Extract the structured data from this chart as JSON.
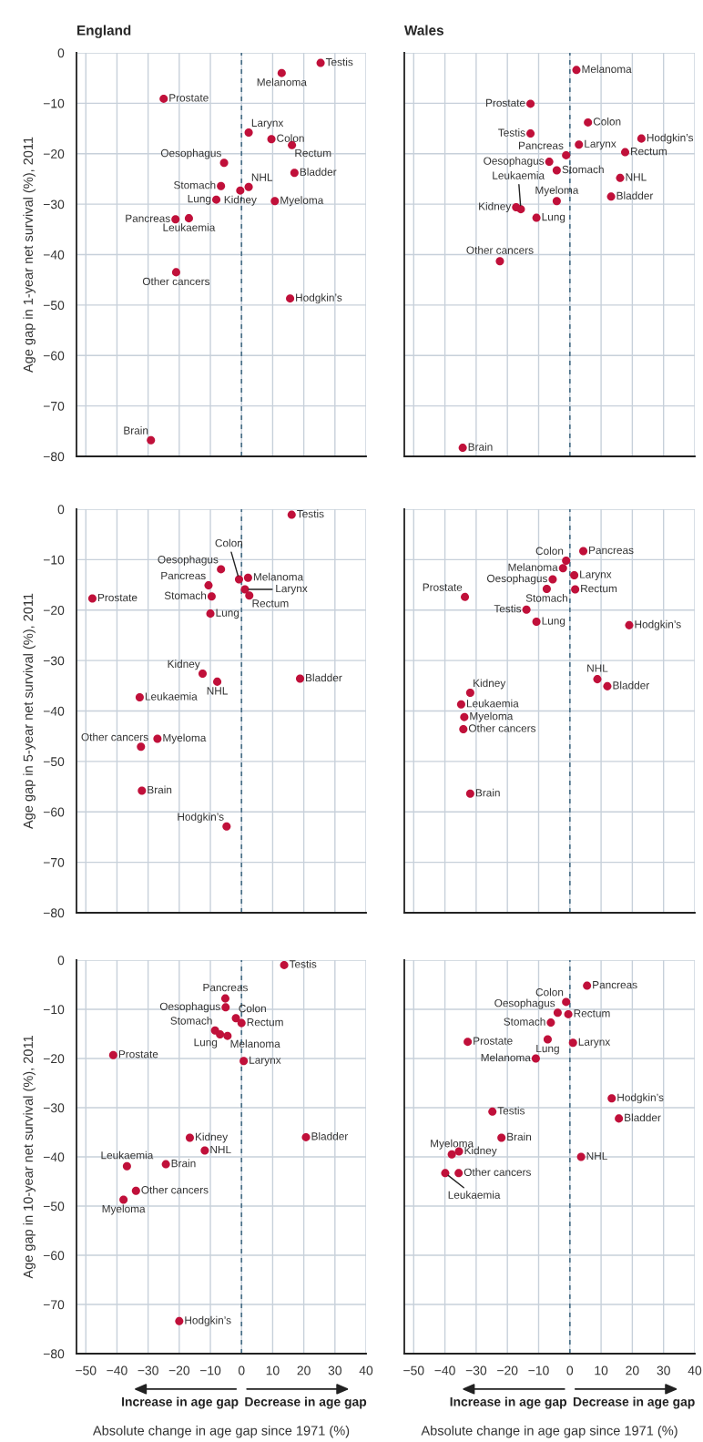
{
  "chart_data": [
    {
      "type": "scatter",
      "title": "England",
      "ylabel": "Age gap in 1-year net survival (%), 2011",
      "xlim": [
        -53,
        40
      ],
      "ylim": [
        -80,
        0
      ],
      "xticks": [
        -50,
        -40,
        -30,
        -20,
        -10,
        0,
        10,
        20,
        30,
        40
      ],
      "yticks": [
        -80,
        -70,
        -60,
        -50,
        -40,
        -30,
        -20,
        -10,
        0
      ],
      "tick_labels": "y",
      "grid": true,
      "marker": "circle",
      "ref_lines": [
        {
          "axis": "x",
          "value": 0,
          "color": "#4a7088",
          "line_style": "dashed"
        }
      ],
      "series": [
        {
          "color": "#c0103a",
          "x": [
            25.4,
            12.9,
            -25.0,
            2.3,
            9.6,
            16.2,
            -5.6,
            17.0,
            -6.6,
            2.3,
            -0.4,
            -8.1,
            10.7,
            -21.2,
            -16.9,
            -21.0,
            15.6,
            -29.1
          ],
          "values": [
            -2.0,
            -4.0,
            -9.1,
            -15.8,
            -17.1,
            -18.3,
            -21.8,
            -23.8,
            -26.4,
            -26.6,
            -27.3,
            -29.1,
            -29.4,
            -33.0,
            -32.8,
            -43.5,
            -48.7,
            -76.8
          ]
        }
      ],
      "annotations": [
        {
          "text": "Testis",
          "x": 25.4,
          "y": -2.0
        },
        {
          "text": "Melanoma",
          "x": 12.9,
          "y": -4.0
        },
        {
          "text": "Prostate",
          "x": -25.0,
          "y": -9.1
        },
        {
          "text": "Larynx",
          "x": 2.3,
          "y": -15.8
        },
        {
          "text": "Colon",
          "x": 9.6,
          "y": -17.1
        },
        {
          "text": "Rectum",
          "x": 16.2,
          "y": -18.3
        },
        {
          "text": "Oesophagus",
          "x": -5.6,
          "y": -21.8
        },
        {
          "text": "Bladder",
          "x": 17.0,
          "y": -23.8
        },
        {
          "text": "Stomach",
          "x": -6.6,
          "y": -26.4
        },
        {
          "text": "NHL",
          "x": 2.3,
          "y": -26.6
        },
        {
          "text": "Kidney",
          "x": -0.4,
          "y": -27.3
        },
        {
          "text": "Lung",
          "x": -8.1,
          "y": -29.1
        },
        {
          "text": "Myeloma",
          "x": 10.7,
          "y": -29.4
        },
        {
          "text": "Pancreas",
          "x": -21.2,
          "y": -33.0
        },
        {
          "text": "Leukaemia",
          "x": -16.9,
          "y": -32.8
        },
        {
          "text": "Other cancers",
          "x": -21.0,
          "y": -43.5
        },
        {
          "text": "Hodgkin’s",
          "x": 15.6,
          "y": -48.7
        },
        {
          "text": "Brain",
          "x": -29.1,
          "y": -76.8
        }
      ]
    },
    {
      "type": "scatter",
      "title": "Wales",
      "xlim": [
        -53,
        40
      ],
      "ylim": [
        -80,
        0
      ],
      "xticks": [
        -50,
        -40,
        -30,
        -20,
        -10,
        0,
        10,
        20,
        30,
        40
      ],
      "yticks": [
        -80,
        -70,
        -60,
        -50,
        -40,
        -30,
        -20,
        -10,
        0
      ],
      "tick_labels": false,
      "grid": true,
      "marker": "circle",
      "ref_lines": [
        {
          "axis": "x",
          "value": 0,
          "color": "#4a7088",
          "line_style": "dashed"
        }
      ],
      "series": [
        {
          "color": "#c0103a",
          "x": [
            2.1,
            -12.6,
            5.8,
            -12.6,
            22.9,
            2.9,
            17.7,
            -1.2,
            -6.6,
            -4.2,
            16.1,
            13.2,
            -4.2,
            -17.2,
            -15.7,
            -10.7,
            -22.4,
            -34.3
          ],
          "values": [
            -3.4,
            -10.1,
            -13.8,
            -16.0,
            -17.0,
            -18.2,
            -19.7,
            -20.3,
            -21.6,
            -23.3,
            -24.8,
            -28.5,
            -29.4,
            -30.6,
            -31.0,
            -32.7,
            -41.3,
            -78.3
          ]
        }
      ],
      "annotations": [
        {
          "text": "Melanoma",
          "x": 2.1,
          "y": -3.4
        },
        {
          "text": "Prostate",
          "x": -12.6,
          "y": -10.1
        },
        {
          "text": "Colon",
          "x": 5.8,
          "y": -13.8
        },
        {
          "text": "Testis",
          "x": -12.6,
          "y": -16.0
        },
        {
          "text": "Hodgkin’s",
          "x": 22.9,
          "y": -17.0
        },
        {
          "text": "Larynx",
          "x": 2.9,
          "y": -18.2
        },
        {
          "text": "Rectum",
          "x": 17.7,
          "y": -19.7
        },
        {
          "text": "Pancreas",
          "x": -1.2,
          "y": -20.3
        },
        {
          "text": "Oesophagus",
          "x": -6.6,
          "y": -21.6
        },
        {
          "text": "Stomach",
          "x": -4.2,
          "y": -23.3
        },
        {
          "text": "NHL",
          "x": 16.1,
          "y": -24.8
        },
        {
          "text": "Bladder",
          "x": 13.2,
          "y": -28.5
        },
        {
          "text": "Myeloma",
          "x": -4.2,
          "y": -29.4
        },
        {
          "text": "Kidney",
          "x": -17.2,
          "y": -30.6
        },
        {
          "text": "Leukaemia",
          "x": -15.7,
          "y": -31.0
        },
        {
          "text": "Lung",
          "x": -10.7,
          "y": -32.7
        },
        {
          "text": "Other cancers",
          "x": -22.4,
          "y": -41.3
        },
        {
          "text": "Brain",
          "x": -34.3,
          "y": -78.3
        }
      ]
    },
    {
      "type": "scatter",
      "ylabel": "Age gap in 5-year net survival (%), 2011",
      "xlim": [
        -53,
        40
      ],
      "ylim": [
        -80,
        0
      ],
      "xticks": [
        -50,
        -40,
        -30,
        -20,
        -10,
        0,
        10,
        20,
        30,
        40
      ],
      "yticks": [
        -80,
        -70,
        -60,
        -50,
        -40,
        -30,
        -20,
        -10,
        0
      ],
      "tick_labels": "y",
      "grid": true,
      "marker": "circle",
      "ref_lines": [
        {
          "axis": "x",
          "value": 0,
          "color": "#4a7088",
          "line_style": "dashed"
        }
      ],
      "series": [
        {
          "color": "#c0103a",
          "x": [
            16.1,
            -6.6,
            -0.8,
            2.1,
            -10.6,
            1.1,
            -9.6,
            2.5,
            -47.9,
            -10.0,
            -12.5,
            -7.8,
            18.8,
            -32.7,
            -27.0,
            -32.3,
            -32.0,
            -4.8
          ],
          "values": [
            -1.1,
            -11.9,
            -13.9,
            -13.6,
            -15.1,
            -15.9,
            -17.3,
            -17.1,
            -17.7,
            -20.7,
            -32.6,
            -34.2,
            -33.6,
            -37.3,
            -45.5,
            -47.1,
            -55.8,
            -62.9
          ]
        }
      ],
      "annotations": [
        {
          "text": "Testis",
          "x": 16.1,
          "y": -1.1
        },
        {
          "text": "Oesophagus",
          "x": -6.6,
          "y": -11.9
        },
        {
          "text": "Colon",
          "x": -0.8,
          "y": -13.9
        },
        {
          "text": "Melanoma",
          "x": 2.1,
          "y": -13.6
        },
        {
          "text": "Pancreas",
          "x": -10.6,
          "y": -15.1
        },
        {
          "text": "Larynx",
          "x": 1.1,
          "y": -15.9
        },
        {
          "text": "Stomach",
          "x": -9.6,
          "y": -17.3
        },
        {
          "text": "Rectum",
          "x": 2.5,
          "y": -17.1
        },
        {
          "text": "Prostate",
          "x": -47.9,
          "y": -17.7
        },
        {
          "text": "Lung",
          "x": -10.0,
          "y": -20.7
        },
        {
          "text": "Kidney",
          "x": -12.5,
          "y": -32.6
        },
        {
          "text": "NHL",
          "x": -7.8,
          "y": -34.2
        },
        {
          "text": "Bladder",
          "x": 18.8,
          "y": -33.6
        },
        {
          "text": "Leukaemia",
          "x": -32.7,
          "y": -37.3
        },
        {
          "text": "Myeloma",
          "x": -27.0,
          "y": -45.5
        },
        {
          "text": "Other cancers",
          "x": -32.3,
          "y": -47.1
        },
        {
          "text": "Brain",
          "x": -32.0,
          "y": -55.8
        },
        {
          "text": "Hodgkin’s",
          "x": -4.8,
          "y": -62.9
        }
      ]
    },
    {
      "type": "scatter",
      "xlim": [
        -53,
        40
      ],
      "ylim": [
        -80,
        0
      ],
      "xticks": [
        -50,
        -40,
        -30,
        -20,
        -10,
        0,
        10,
        20,
        30,
        40
      ],
      "yticks": [
        -80,
        -70,
        -60,
        -50,
        -40,
        -30,
        -20,
        -10,
        0
      ],
      "tick_labels": false,
      "grid": true,
      "marker": "circle",
      "ref_lines": [
        {
          "axis": "x",
          "value": 0,
          "color": "#4a7088",
          "line_style": "dashed"
        }
      ],
      "series": [
        {
          "color": "#c0103a",
          "x": [
            4.3,
            -1.2,
            -2.2,
            1.4,
            -5.5,
            -7.4,
            1.7,
            -33.6,
            -13.9,
            -10.7,
            19.0,
            8.8,
            12.0,
            -31.9,
            -34.8,
            -33.8,
            -34.1,
            -31.9
          ],
          "values": [
            -8.3,
            -10.2,
            -11.7,
            -13.1,
            -13.9,
            -15.8,
            -15.9,
            -17.4,
            -19.9,
            -22.3,
            -23.0,
            -33.7,
            -35.1,
            -36.4,
            -38.7,
            -41.2,
            -43.6,
            -56.4
          ]
        }
      ],
      "annotations": [
        {
          "text": "Pancreas",
          "x": 4.3,
          "y": -8.3
        },
        {
          "text": "Colon",
          "x": -1.2,
          "y": -10.2
        },
        {
          "text": "Melanoma",
          "x": -2.2,
          "y": -11.7
        },
        {
          "text": "Larynx",
          "x": 1.4,
          "y": -13.1
        },
        {
          "text": "Oesophagus",
          "x": -5.5,
          "y": -13.9
        },
        {
          "text": "Stomach",
          "x": -7.4,
          "y": -15.8
        },
        {
          "text": "Rectum",
          "x": 1.7,
          "y": -15.9
        },
        {
          "text": "Prostate",
          "x": -33.6,
          "y": -17.4
        },
        {
          "text": "Testis",
          "x": -13.9,
          "y": -19.9
        },
        {
          "text": "Lung",
          "x": -10.7,
          "y": -22.3
        },
        {
          "text": "Hodgkin’s",
          "x": 19.0,
          "y": -23.0
        },
        {
          "text": "NHL",
          "x": 8.8,
          "y": -33.7
        },
        {
          "text": "Bladder",
          "x": 12.0,
          "y": -35.1
        },
        {
          "text": "Kidney",
          "x": -31.9,
          "y": -36.4
        },
        {
          "text": "Leukaemia",
          "x": -34.8,
          "y": -38.7
        },
        {
          "text": "Myeloma",
          "x": -33.8,
          "y": -41.2
        },
        {
          "text": "Other cancers",
          "x": -34.1,
          "y": -43.6
        },
        {
          "text": "Brain",
          "x": -31.9,
          "y": -56.4
        }
      ]
    },
    {
      "type": "scatter",
      "ylabel": "Age gap in 10-year net survival (%), 2011",
      "xlabel": "Absolute change in age gap since 1971 (%)",
      "xlim": [
        -53,
        40
      ],
      "ylim": [
        -80,
        0
      ],
      "xticks": [
        -50,
        -40,
        -30,
        -20,
        -10,
        0,
        10,
        20,
        30,
        40
      ],
      "yticks": [
        -80,
        -70,
        -60,
        -50,
        -40,
        -30,
        -20,
        -10,
        0
      ],
      "grid": true,
      "marker": "circle",
      "ref_lines": [
        {
          "axis": "x",
          "value": 0,
          "color": "#4a7088",
          "line_style": "dashed"
        }
      ],
      "series": [
        {
          "color": "#c0103a",
          "x": [
            13.7,
            -5.2,
            -5.1,
            -1.8,
            0.0,
            -8.5,
            -6.9,
            -4.5,
            -41.2,
            0.7,
            -16.6,
            20.7,
            -11.8,
            -36.8,
            -24.3,
            -33.9,
            -37.9,
            -20.0
          ],
          "values": [
            -1.0,
            -7.8,
            -9.6,
            -11.8,
            -12.8,
            -14.3,
            -15.1,
            -15.4,
            -19.3,
            -20.5,
            -36.1,
            -36.0,
            -38.7,
            -41.9,
            -41.5,
            -46.9,
            -48.7,
            -73.4
          ]
        }
      ],
      "annotations": [
        {
          "text": "Testis",
          "x": 13.7,
          "y": -1.0
        },
        {
          "text": "Pancreas",
          "x": -5.2,
          "y": -7.8
        },
        {
          "text": "Oesophagus",
          "x": -5.1,
          "y": -9.6
        },
        {
          "text": "Colon",
          "x": -1.8,
          "y": -11.8
        },
        {
          "text": "Rectum",
          "x": 0.0,
          "y": -12.8
        },
        {
          "text": "Stomach",
          "x": -8.5,
          "y": -14.3
        },
        {
          "text": "Lung",
          "x": -6.9,
          "y": -15.1
        },
        {
          "text": "Melanoma",
          "x": -4.5,
          "y": -15.4
        },
        {
          "text": "Prostate",
          "x": -41.2,
          "y": -19.3
        },
        {
          "text": "Larynx",
          "x": 0.7,
          "y": -20.5
        },
        {
          "text": "Kidney",
          "x": -16.6,
          "y": -36.1
        },
        {
          "text": "Bladder",
          "x": 20.7,
          "y": -36.0
        },
        {
          "text": "NHL",
          "x": -11.8,
          "y": -38.7
        },
        {
          "text": "Leukaemia",
          "x": -36.8,
          "y": -41.9
        },
        {
          "text": "Brain",
          "x": -24.3,
          "y": -41.5
        },
        {
          "text": "Other cancers",
          "x": -33.9,
          "y": -46.9
        },
        {
          "text": "Myeloma",
          "x": -37.9,
          "y": -48.7
        },
        {
          "text": "Hodgkin’s",
          "x": -20.0,
          "y": -73.4
        },
        "Increase in age gap",
        "Decrease in age gap"
      ]
    },
    {
      "type": "scatter",
      "xlabel": "Absolute change in age gap since 1971 (%)",
      "xlim": [
        -53,
        40
      ],
      "ylim": [
        -80,
        0
      ],
      "xticks": [
        -50,
        -40,
        -30,
        -20,
        -10,
        0,
        10,
        20,
        30,
        40
      ],
      "yticks": [
        -80,
        -70,
        -60,
        -50,
        -40,
        -30,
        -20,
        -10,
        0
      ],
      "tick_labels": "x",
      "grid": true,
      "marker": "circle",
      "ref_lines": [
        {
          "axis": "x",
          "value": 0,
          "color": "#4a7088",
          "line_style": "dashed"
        }
      ],
      "series": [
        {
          "color": "#c0103a",
          "x": [
            5.5,
            -1.2,
            -3.9,
            -0.5,
            -6.1,
            -32.7,
            -7.1,
            1.0,
            -10.9,
            13.4,
            -24.8,
            15.7,
            -21.9,
            -35.5,
            -37.8,
            3.6,
            -39.9,
            -35.6
          ],
          "values": [
            -5.2,
            -8.5,
            -10.7,
            -11.0,
            -12.7,
            -16.6,
            -16.1,
            -16.8,
            -20.0,
            -28.1,
            -30.8,
            -32.2,
            -36.1,
            -38.9,
            -39.5,
            -40.0,
            -43.3,
            -43.3
          ]
        }
      ],
      "annotations": [
        {
          "text": "Pancreas",
          "x": 5.5,
          "y": -5.2
        },
        {
          "text": "Colon",
          "x": -1.2,
          "y": -8.5
        },
        {
          "text": "Oesophagus",
          "x": -3.9,
          "y": -10.7
        },
        {
          "text": "Rectum",
          "x": -0.5,
          "y": -11.0
        },
        {
          "text": "Stomach",
          "x": -6.1,
          "y": -12.7
        },
        {
          "text": "Prostate",
          "x": -32.7,
          "y": -16.6
        },
        {
          "text": "Lung",
          "x": -7.1,
          "y": -16.1
        },
        {
          "text": "Larynx",
          "x": 1.0,
          "y": -16.8
        },
        {
          "text": "Melanoma",
          "x": -10.9,
          "y": -20.0
        },
        {
          "text": "Hodgkin’s",
          "x": 13.4,
          "y": -28.1
        },
        {
          "text": "Testis",
          "x": -24.8,
          "y": -30.8
        },
        {
          "text": "Bladder",
          "x": 15.7,
          "y": -32.2
        },
        {
          "text": "Brain",
          "x": -21.9,
          "y": -36.1
        },
        {
          "text": "Kidney",
          "x": -35.5,
          "y": -38.9
        },
        {
          "text": "Myeloma",
          "x": -37.8,
          "y": -39.5
        },
        {
          "text": "NHL",
          "x": 3.6,
          "y": -40.0
        },
        {
          "text": "Leukaemia",
          "x": -39.9,
          "y": -43.3
        },
        {
          "text": "Other cancers",
          "x": -35.6,
          "y": -43.3
        },
        "Increase in age gap",
        "Decrease in age gap"
      ]
    }
  ]
}
